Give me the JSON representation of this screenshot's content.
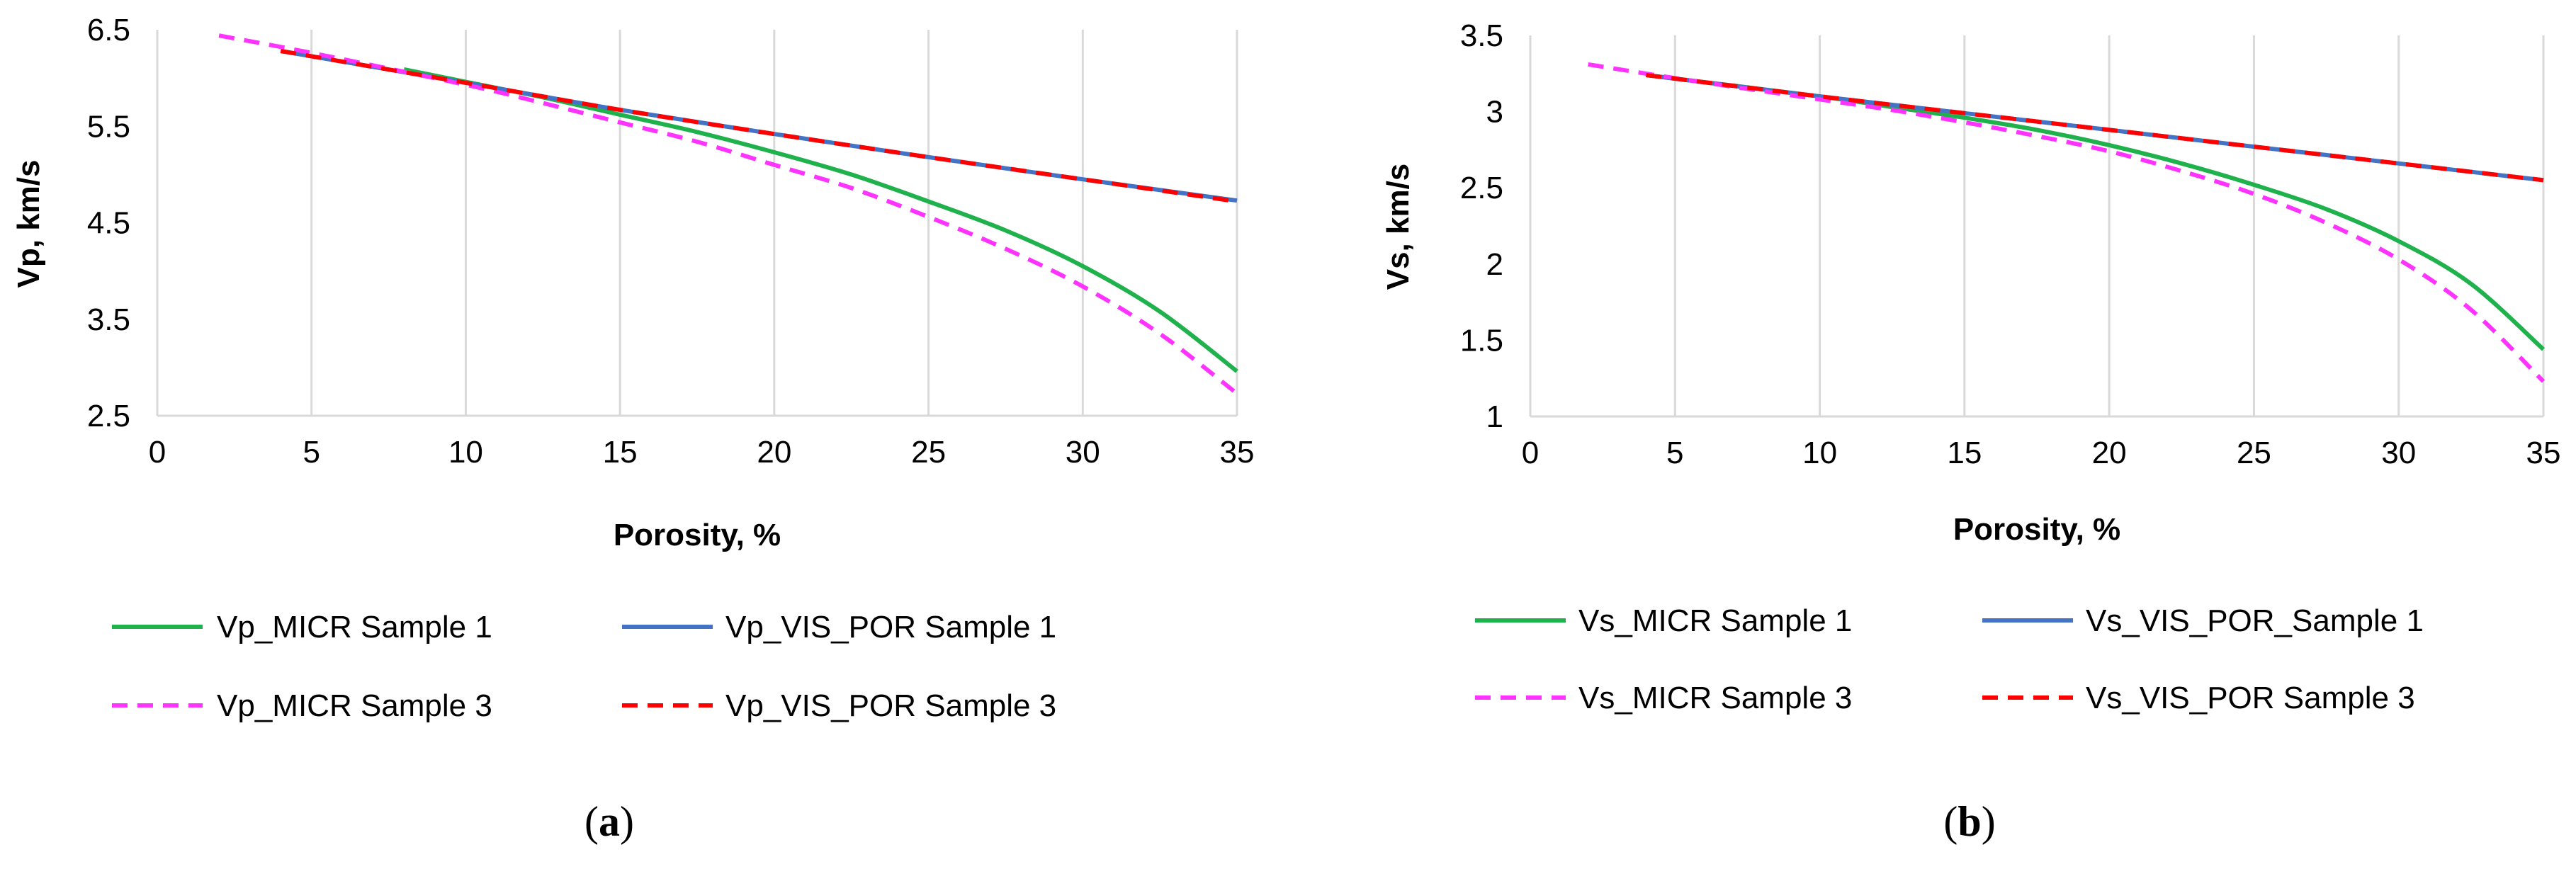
{
  "colors": {
    "micr_sample_1": "#1fb14b",
    "vis_por_sample_1": "#4472c4",
    "micr_sample_3": "#ff33ff",
    "vis_por_sample_3": "#ff0000",
    "grid": "#d9d9d9"
  },
  "chart_data": [
    {
      "type": "line",
      "panel_label": {
        "open": "(",
        "letter": "a",
        "close": ")"
      },
      "title": "",
      "xlabel": "Porosity, %",
      "ylabel": "Vp, km/s",
      "xlim": [
        0,
        35
      ],
      "ylim": [
        2.5,
        6.5
      ],
      "xticks": [
        0,
        5,
        10,
        15,
        20,
        25,
        30,
        35
      ],
      "yticks": [
        2.5,
        3.5,
        4.5,
        5.5,
        6.5
      ],
      "ytick_labels": [
        "2.5",
        "3.5",
        "4.5",
        "5.5",
        "6.5"
      ],
      "grid": "vertical",
      "legend_position": "bottom",
      "series": [
        {
          "name": "Vp_MICR Sample 1",
          "color_key": "micr_sample_1",
          "dash": "solid",
          "x": [
            8,
            10,
            12.5,
            15,
            17.5,
            20,
            22.5,
            25,
            27.5,
            30,
            32.5,
            35
          ],
          "y": [
            6.09,
            5.96,
            5.8,
            5.62,
            5.44,
            5.23,
            5.0,
            4.72,
            4.42,
            4.05,
            3.58,
            2.96
          ]
        },
        {
          "name": "Vp_VIS_POR Sample 1",
          "color_key": "vis_por_sample_1",
          "dash": "solid",
          "x": [
            4,
            10,
            15,
            20,
            25,
            30,
            35
          ],
          "y": [
            6.28,
            5.95,
            5.67,
            5.42,
            5.18,
            4.95,
            4.73
          ]
        },
        {
          "name": "Vp_MICR Sample 3",
          "color_key": "micr_sample_3",
          "dash": "dashed",
          "x": [
            2,
            5,
            10,
            12.5,
            15,
            17.5,
            20,
            22.5,
            25,
            27.5,
            30,
            32.5,
            35
          ],
          "y": [
            6.44,
            6.26,
            5.93,
            5.74,
            5.54,
            5.34,
            5.1,
            4.86,
            4.56,
            4.23,
            3.84,
            3.35,
            2.73
          ]
        },
        {
          "name": "Vp_VIS_POR Sample 3",
          "color_key": "vis_por_sample_3",
          "dash": "dashed",
          "x": [
            4,
            10,
            15,
            20,
            25,
            30,
            35
          ],
          "y": [
            6.28,
            5.95,
            5.67,
            5.42,
            5.18,
            4.95,
            4.72
          ]
        }
      ]
    },
    {
      "type": "line",
      "panel_label": {
        "open": "(",
        "letter": "b",
        "close": ")"
      },
      "title": "",
      "xlabel": "Porosity, %",
      "ylabel": "Vs, km/s",
      "xlim": [
        0,
        35
      ],
      "ylim": [
        1,
        3.5
      ],
      "xticks": [
        0,
        5,
        10,
        15,
        20,
        25,
        30,
        35
      ],
      "yticks": [
        1,
        1.5,
        2,
        2.5,
        3,
        3.5
      ],
      "ytick_labels": [
        "1",
        "1.5",
        "2",
        "2.5",
        "3",
        "3.5"
      ],
      "grid": "vertical",
      "legend_position": "bottom",
      "series": [
        {
          "name": "Vs_MICR Sample 1",
          "color_key": "micr_sample_1",
          "dash": "solid",
          "x": [
            4,
            10,
            12.5,
            15,
            17.5,
            20,
            22.5,
            25,
            27.5,
            30,
            32.5,
            35
          ],
          "y": [
            3.24,
            3.1,
            3.03,
            2.96,
            2.88,
            2.78,
            2.66,
            2.52,
            2.36,
            2.15,
            1.87,
            1.44
          ]
        },
        {
          "name": "Vs_VIS_POR_Sample 1",
          "color_key": "vis_por_sample_1",
          "dash": "solid",
          "x": [
            4,
            10,
            15,
            20,
            25,
            30,
            35
          ],
          "y": [
            3.24,
            3.1,
            2.99,
            2.88,
            2.77,
            2.66,
            2.55
          ]
        },
        {
          "name": "Vs_MICR Sample 3",
          "color_key": "micr_sample_3",
          "dash": "dashed",
          "x": [
            2,
            5,
            10,
            12.5,
            15,
            17.5,
            20,
            22.5,
            25,
            27.5,
            30,
            32.5,
            35
          ],
          "y": [
            3.31,
            3.22,
            3.08,
            3.01,
            2.93,
            2.84,
            2.74,
            2.61,
            2.46,
            2.27,
            2.03,
            1.7,
            1.23
          ]
        },
        {
          "name": "Vs_VIS_POR Sample 3",
          "color_key": "vis_por_sample_3",
          "dash": "dashed",
          "x": [
            4,
            10,
            15,
            20,
            25,
            30,
            35
          ],
          "y": [
            3.24,
            3.1,
            2.99,
            2.88,
            2.77,
            2.66,
            2.55
          ]
        }
      ]
    }
  ]
}
